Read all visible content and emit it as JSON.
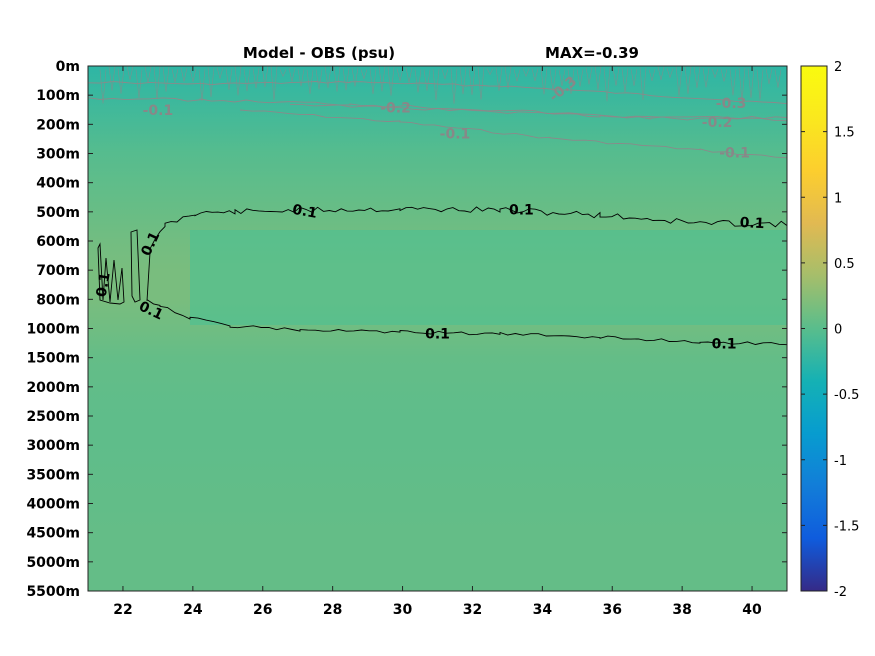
{
  "chart_data": {
    "type": "heatmap",
    "title": "Model - OBS (psu)",
    "max_label": "MAX=-0.39",
    "xlabel": "",
    "ylabel": "",
    "xlim": [
      21,
      41
    ],
    "x_ticks": [
      22,
      24,
      26,
      28,
      30,
      32,
      34,
      36,
      38,
      40
    ],
    "y_ticks": [
      "0m",
      "100m",
      "200m",
      "300m",
      "400m",
      "500m",
      "600m",
      "700m",
      "800m",
      "1000m",
      "1500m",
      "2000m",
      "2500m",
      "3000m",
      "3500m",
      "4000m",
      "4500m",
      "5000m",
      "5500m"
    ],
    "colorbar": {
      "colormap": "parula",
      "clim": [
        -2,
        2
      ],
      "ticks": [
        "2",
        "1.5",
        "1",
        "0.5",
        "0",
        "-0.5",
        "-1",
        "-1.5",
        "-2"
      ]
    },
    "depth_bands": [
      {
        "depth": "0m",
        "value": -0.25
      },
      {
        "depth": "100m",
        "value": -0.18
      },
      {
        "depth": "200m",
        "value": -0.1
      },
      {
        "depth": "300m",
        "value": -0.02
      },
      {
        "depth": "400m",
        "value": 0.03
      },
      {
        "depth": "500m",
        "value": 0.08
      },
      {
        "depth": "600m",
        "value": 0.13
      },
      {
        "depth": "700m",
        "value": 0.17
      },
      {
        "depth": "800m",
        "value": 0.17
      },
      {
        "depth": "1000m",
        "value": 0.12
      },
      {
        "depth": "1500m",
        "value": 0.06
      },
      {
        "depth": "2000m",
        "value": 0.04
      },
      {
        "depth": "2500m",
        "value": 0.03
      },
      {
        "depth": "3000m",
        "value": 0.03
      },
      {
        "depth": "3500m",
        "value": 0.04
      },
      {
        "depth": "4000m",
        "value": 0.05
      },
      {
        "depth": "4500m",
        "value": 0.06
      },
      {
        "depth": "5000m",
        "value": 0.06
      },
      {
        "depth": "5500m",
        "value": 0.06
      }
    ],
    "contours": [
      {
        "level": 0.1,
        "color": "#000000",
        "labels": [
          {
            "text": "0.1",
            "x": 27.2,
            "depth_index": 5.0,
            "angle": 10
          },
          {
            "text": "0.1",
            "x": 33.4,
            "depth_index": 4.95,
            "angle": 0
          },
          {
            "text": "0.1",
            "x": 40.0,
            "depth_index": 5.4,
            "angle": 3
          },
          {
            "text": "0.1",
            "x": 22.8,
            "depth_index": 6.1,
            "angle": -65
          },
          {
            "text": "0.1",
            "x": 21.45,
            "depth_index": 7.5,
            "angle": -80
          },
          {
            "text": "0.1",
            "x": 22.8,
            "depth_index": 8.4,
            "angle": 25
          },
          {
            "text": "0.1",
            "x": 31.0,
            "depth_index": 9.2,
            "angle": 0
          },
          {
            "text": "0.1",
            "x": 39.2,
            "depth_index": 9.55,
            "angle": 0
          }
        ]
      },
      {
        "level": -0.1,
        "color": "#888888",
        "labels": [
          {
            "text": "-0.1",
            "x": 23.0,
            "depth_index": 1.55,
            "angle": 0
          },
          {
            "text": "-0.1",
            "x": 31.5,
            "depth_index": 2.35,
            "angle": 0
          },
          {
            "text": "-0.1",
            "x": 39.5,
            "depth_index": 3.0,
            "angle": 0
          }
        ]
      },
      {
        "level": -0.2,
        "color": "#888888",
        "labels": [
          {
            "text": "-0.2",
            "x": 29.8,
            "depth_index": 1.45,
            "angle": 0
          },
          {
            "text": "-0.2",
            "x": 39.0,
            "depth_index": 1.95,
            "angle": 0
          }
        ]
      },
      {
        "level": -0.3,
        "color": "#888888",
        "labels": [
          {
            "text": "-0.3",
            "x": 34.6,
            "depth_index": 0.8,
            "angle": -40
          },
          {
            "text": "-0.3",
            "x": 39.4,
            "depth_index": 1.3,
            "angle": 0
          }
        ]
      }
    ]
  }
}
